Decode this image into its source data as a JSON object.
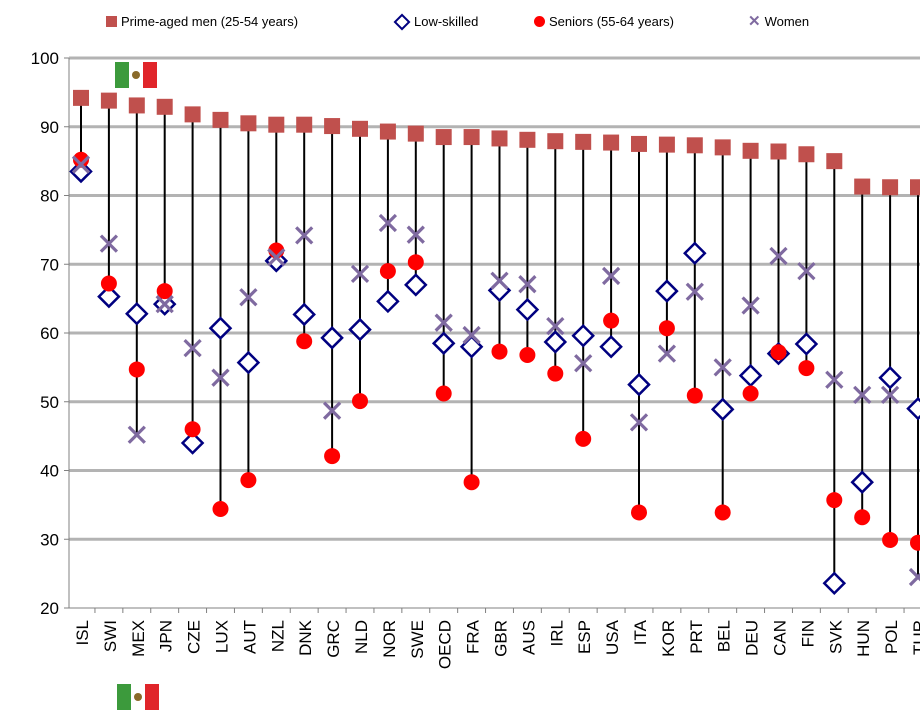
{
  "legend": {
    "men": "Prime-aged men (25-54  years)",
    "low": "Low-skilled",
    "seniors": "Seniors  (55-64  years)",
    "women": "Women"
  },
  "colors": {
    "men": "#c0504d",
    "low": "#000080",
    "seniors": "#ff0000",
    "women": "#7f6aa0",
    "grid": "#b3b3b3",
    "stem": "#000000"
  },
  "icons": {
    "flag": "mexico-flag"
  },
  "chart_data": {
    "type": "scatter",
    "ylim": [
      20,
      100
    ],
    "yticks": [
      20,
      30,
      40,
      50,
      60,
      70,
      80,
      90,
      100
    ],
    "grid": true,
    "legend_position": "top",
    "categories": [
      "ISL",
      "SWI",
      "MEX",
      "JPN",
      "CZE",
      "LUX",
      "AUT",
      "NZL",
      "DNK",
      "GRC",
      "NLD",
      "NOR",
      "SWE",
      "OECD",
      "FRA",
      "GBR",
      "AUS",
      "IRL",
      "ESP",
      "USA",
      "ITA",
      "KOR",
      "PRT",
      "BEL",
      "DEU",
      "CAN",
      "FIN",
      "SVK",
      "HUN",
      "POL",
      "TUR"
    ],
    "series": [
      {
        "name": "Prime-aged men (25-54  years)",
        "values": [
          94.2,
          93.8,
          93.1,
          92.9,
          91.8,
          91.0,
          90.5,
          90.3,
          90.3,
          90.1,
          89.7,
          89.3,
          89.0,
          88.5,
          88.5,
          88.3,
          88.1,
          87.9,
          87.8,
          87.7,
          87.5,
          87.4,
          87.3,
          87.0,
          86.5,
          86.4,
          86.0,
          85.0,
          81.3,
          81.2,
          81.2
        ]
      },
      {
        "name": "Low-skilled",
        "values": [
          83.5,
          65.3,
          62.8,
          64.2,
          44.0,
          60.7,
          55.7,
          70.5,
          62.7,
          59.3,
          60.5,
          64.6,
          67.0,
          58.5,
          58.0,
          66.2,
          63.4,
          58.7,
          59.6,
          58.0,
          52.5,
          66.1,
          71.6,
          48.9,
          53.8,
          57.0,
          58.4,
          23.6,
          38.3,
          53.5,
          49.0
        ]
      },
      {
        "name": "Seniors  (55-64  years)",
        "values": [
          85.2,
          67.2,
          54.7,
          66.1,
          46.0,
          34.4,
          38.6,
          72.0,
          58.8,
          42.1,
          50.1,
          69.0,
          70.3,
          51.2,
          38.3,
          57.3,
          56.8,
          54.1,
          44.6,
          61.8,
          33.9,
          60.7,
          50.9,
          33.9,
          51.2,
          57.2,
          54.9,
          35.7,
          33.2,
          29.9,
          29.5
        ]
      },
      {
        "name": "Women",
        "values": [
          84.5,
          73.0,
          45.2,
          64.2,
          57.8,
          53.5,
          65.2,
          71.0,
          74.2,
          48.7,
          68.6,
          76.0,
          74.3,
          61.5,
          59.7,
          67.6,
          67.1,
          61.0,
          55.6,
          68.3,
          47.0,
          57.0,
          66.0,
          55.0,
          64.0,
          71.2,
          69.0,
          53.2,
          51.0,
          51.0,
          24.5
        ]
      }
    ]
  }
}
